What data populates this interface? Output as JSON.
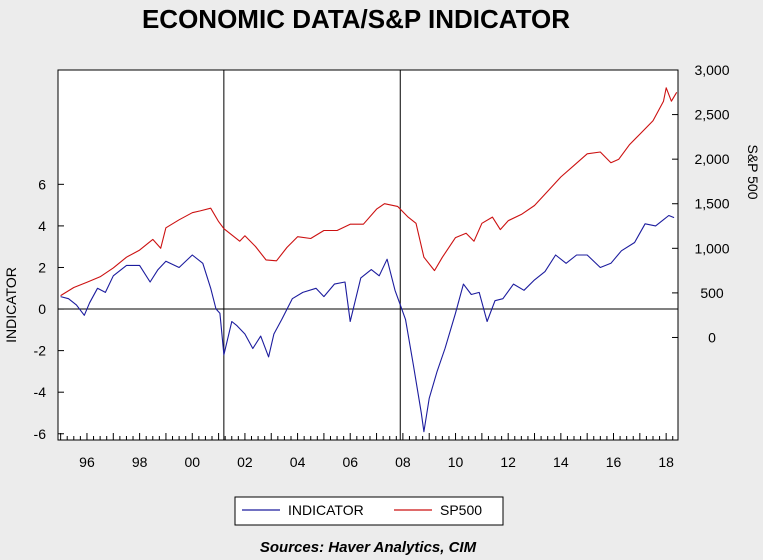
{
  "chart_data": {
    "type": "line",
    "title": "ECONOMIC DATA/S&P INDICATOR",
    "ylabel": "INDICATOR",
    "y2label": "S&P 500",
    "source": "Sources:  Haver Analytics, CIM",
    "x_ticks": [
      "96",
      "98",
      "00",
      "02",
      "04",
      "06",
      "08",
      "10",
      "12",
      "14",
      "16",
      "18"
    ],
    "xlim": [
      1994.9,
      2018.45
    ],
    "ylim": [
      -6.3,
      11.5
    ],
    "y_ticks": [
      -6,
      -4,
      -2,
      0,
      2,
      4,
      6
    ],
    "y2lim": [
      -1150,
      3000
    ],
    "y2_ticks": [
      "0",
      "500",
      "1,000",
      "1,500",
      "2,000",
      "2,500",
      "3,000"
    ],
    "y2_tick_values": [
      0,
      500,
      1000,
      1500,
      2000,
      2500,
      3000
    ],
    "vertical_lines": [
      2001.2,
      2007.9
    ],
    "zero_line": 0,
    "legend_position": "bottom-center",
    "series": [
      {
        "name": "INDICATOR",
        "axis": "left",
        "color": "#1c1c9e",
        "x": [
          1995.0,
          1995.3,
          1995.6,
          1995.9,
          1996.1,
          1996.4,
          1996.7,
          1997.0,
          1997.5,
          1998.0,
          1998.4,
          1998.7,
          1999.0,
          1999.5,
          2000.0,
          2000.4,
          2000.7,
          2000.9,
          2001.05,
          2001.2,
          2001.5,
          2001.7,
          2002.0,
          2002.3,
          2002.6,
          2002.9,
          2003.1,
          2003.4,
          2003.8,
          2004.2,
          2004.7,
          2005.0,
          2005.4,
          2005.8,
          2006.0,
          2006.4,
          2006.8,
          2007.1,
          2007.4,
          2007.7,
          2007.9,
          2008.1,
          2008.4,
          2008.7,
          2008.8,
          2009.0,
          2009.3,
          2009.6,
          2010.0,
          2010.3,
          2010.6,
          2010.9,
          2011.2,
          2011.5,
          2011.8,
          2012.2,
          2012.6,
          2013.0,
          2013.4,
          2013.8,
          2014.2,
          2014.6,
          2015.0,
          2015.5,
          2015.9,
          2016.3,
          2016.8,
          2017.2,
          2017.6,
          2017.9,
          2018.1,
          2018.3
        ],
        "values": [
          0.6,
          0.5,
          0.2,
          -0.3,
          0.3,
          1.0,
          0.8,
          1.6,
          2.1,
          2.1,
          1.3,
          1.9,
          2.3,
          2.0,
          2.6,
          2.2,
          1.0,
          0.0,
          -0.2,
          -2.2,
          -0.6,
          -0.8,
          -1.2,
          -1.9,
          -1.3,
          -2.3,
          -1.2,
          -0.5,
          0.5,
          0.8,
          1.0,
          0.6,
          1.2,
          1.3,
          -0.6,
          1.5,
          1.9,
          1.6,
          2.4,
          0.9,
          0.2,
          -0.5,
          -2.7,
          -5.0,
          -5.9,
          -4.3,
          -3.0,
          -1.9,
          -0.2,
          1.2,
          0.7,
          0.8,
          -0.6,
          0.4,
          0.5,
          1.2,
          0.9,
          1.4,
          1.8,
          2.6,
          2.2,
          2.6,
          2.6,
          2.0,
          2.2,
          2.8,
          3.2,
          4.1,
          4.0,
          4.3,
          4.5,
          4.4
        ]
      },
      {
        "name": "SP500",
        "axis": "right",
        "color": "#cc1111",
        "x": [
          1995.0,
          1995.5,
          1996.0,
          1996.5,
          1997.0,
          1997.5,
          1998.0,
          1998.5,
          1998.8,
          1999.0,
          1999.5,
          2000.0,
          2000.3,
          2000.7,
          2001.0,
          2001.2,
          2001.5,
          2001.8,
          2002.0,
          2002.4,
          2002.8,
          2003.2,
          2003.6,
          2004.0,
          2004.5,
          2005.0,
          2005.5,
          2006.0,
          2006.5,
          2007.0,
          2007.3,
          2007.8,
          2008.2,
          2008.5,
          2008.8,
          2009.2,
          2009.5,
          2010.0,
          2010.4,
          2010.7,
          2011.0,
          2011.4,
          2011.7,
          2012.0,
          2012.5,
          2013.0,
          2013.5,
          2014.0,
          2014.5,
          2015.0,
          2015.5,
          2015.9,
          2016.2,
          2016.6,
          2017.0,
          2017.5,
          2017.9,
          2018.0,
          2018.2,
          2018.4
        ],
        "values": [
          470,
          560,
          620,
          680,
          780,
          900,
          980,
          1100,
          1000,
          1230,
          1320,
          1400,
          1420,
          1450,
          1300,
          1220,
          1150,
          1080,
          1140,
          1020,
          870,
          860,
          1010,
          1130,
          1110,
          1200,
          1200,
          1270,
          1270,
          1440,
          1500,
          1470,
          1350,
          1280,
          900,
          750,
          900,
          1120,
          1170,
          1080,
          1280,
          1350,
          1210,
          1310,
          1380,
          1480,
          1640,
          1800,
          1930,
          2060,
          2080,
          1960,
          2000,
          2160,
          2280,
          2430,
          2650,
          2800,
          2650,
          2750
        ]
      }
    ]
  }
}
